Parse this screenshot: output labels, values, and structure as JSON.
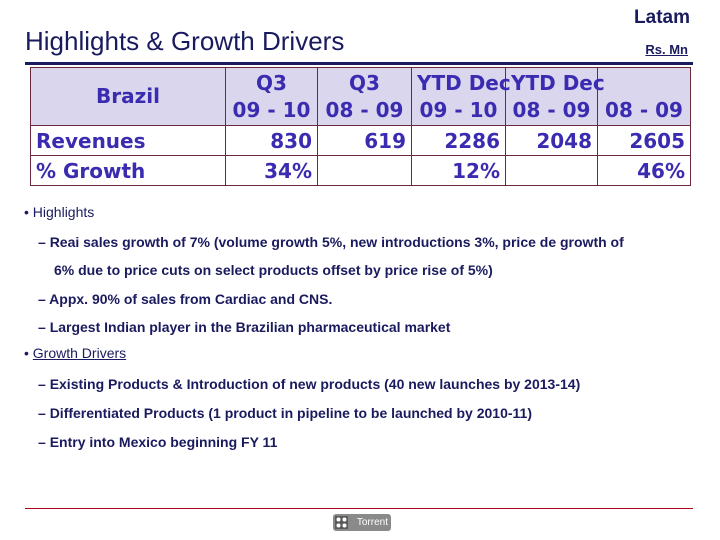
{
  "header": {
    "title": "Highlights & Growth Drivers",
    "region": "Latam",
    "units": "Rs. Mn"
  },
  "table": {
    "corner": "Brazil",
    "columns": [
      {
        "line1": "Q3",
        "line2": "09 - 10"
      },
      {
        "line1": "Q3",
        "line2": "08 - 09"
      },
      {
        "line1": "YTD Dec",
        "line2": "09 - 10"
      },
      {
        "line1": "YTD Dec",
        "line2": "08 - 09"
      },
      {
        "line1": "",
        "line2": "08 - 09"
      }
    ],
    "rows": [
      {
        "label": "Revenues",
        "cells": [
          "830",
          "619",
          "2286",
          "2048",
          "2605"
        ]
      },
      {
        "label": "% Growth",
        "cells": [
          "34%",
          "",
          "12%",
          "",
          "46%"
        ]
      }
    ]
  },
  "highlights": {
    "heading": "Highlights",
    "items": [
      "Reai sales growth of 7% (volume growth 5%, new introductions 3%, price de growth of",
      "6% due to price cuts on select products offset by price rise of 5%)",
      "Appx. 90% of sales from Cardiac and CNS.",
      "Largest Indian player in the Brazilian pharmaceutical market"
    ]
  },
  "growth_drivers": {
    "heading": "Growth Drivers",
    "items": [
      "Existing Products & Introduction of new products (40 new launches by 2013-14)",
      "Differentiated Products (1 product in pipeline to be launched by 2010-11)",
      "Entry into Mexico beginning FY 11"
    ]
  },
  "footer": {
    "logo_text": "Torrent"
  }
}
